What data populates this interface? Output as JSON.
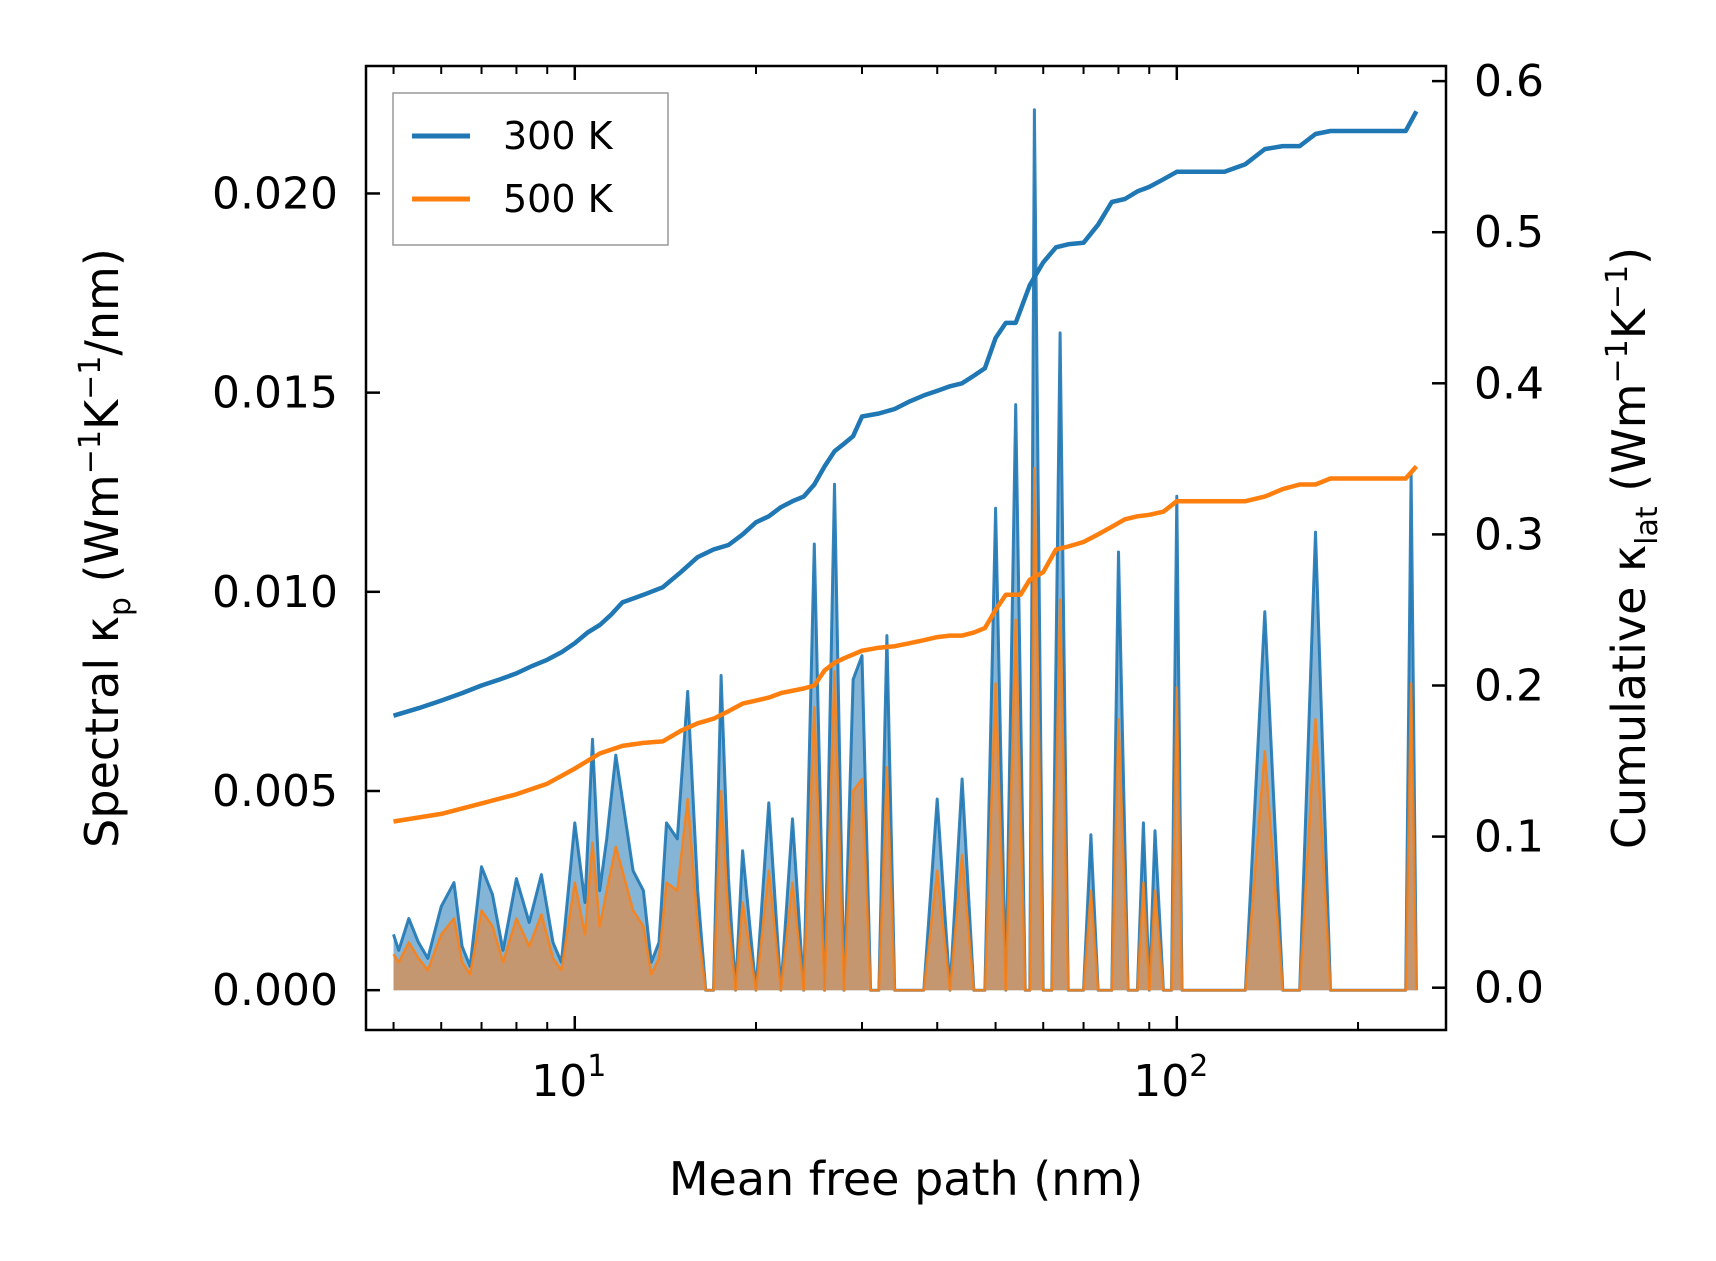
{
  "chart_data": {
    "type": "line",
    "title": "",
    "xlabel": "Mean free path (nm)",
    "xscale": "log",
    "xlim": [
      4.5,
      280
    ],
    "x_ticks": [
      {
        "value": 10,
        "base": "10",
        "exp": "1"
      },
      {
        "value": 100,
        "base": "10",
        "exp": "2"
      }
    ],
    "y_left": {
      "label": "Spectral κp (Wm⁻¹K⁻¹/nm)",
      "label_parts": {
        "main": "Spectral κ",
        "sub": "p",
        "units_open": " (Wm",
        "exp1": "−1",
        "mid": "K",
        "exp2": "−1",
        "units_close": "/nm)"
      },
      "ylim": [
        -0.001,
        0.0232
      ],
      "ticks": [
        0.0,
        0.005,
        0.01,
        0.015,
        0.02
      ],
      "tick_labels": [
        "0.000",
        "0.005",
        "0.010",
        "0.015",
        "0.020"
      ]
    },
    "y_right": {
      "label": "Cumulative κlat (Wm⁻¹K⁻¹)",
      "label_parts": {
        "main": "Cumulative κ",
        "sub": "lat",
        "units_open": " (Wm",
        "exp1": "−1",
        "mid": "K",
        "exp2": "−1",
        "units_close": ")"
      },
      "ylim": [
        -0.028,
        0.61
      ],
      "ticks": [
        0.0,
        0.1,
        0.2,
        0.3,
        0.4,
        0.5,
        0.6
      ],
      "tick_labels": [
        "0.0",
        "0.1",
        "0.2",
        "0.3",
        "0.4",
        "0.5",
        "0.6"
      ]
    },
    "legend": {
      "position": "top-left",
      "entries": [
        "300 K",
        "500 K"
      ]
    },
    "colors": {
      "300 K": "#1f77b4",
      "500 K": "#ff7f0e",
      "spectral_500_fill": "#c8966a"
    },
    "series": [
      {
        "name": "300 K",
        "kind": "cumulative",
        "axis": "right",
        "x": [
          5,
          5.5,
          6,
          6.5,
          7,
          7.5,
          8,
          8.5,
          9,
          9.5,
          10,
          10.5,
          11,
          11.5,
          12,
          13,
          14,
          15,
          16,
          17,
          18,
          19,
          20,
          21,
          22,
          23,
          24,
          25,
          26,
          27,
          28,
          29,
          30,
          32,
          34,
          36,
          38,
          40,
          42,
          44,
          46,
          48,
          50,
          52,
          54,
          57,
          60,
          63,
          66,
          70,
          74,
          78,
          82,
          86,
          90,
          95,
          100,
          110,
          120,
          130,
          140,
          150,
          160,
          170,
          180,
          200,
          220,
          240,
          250
        ],
        "y": [
          0.18,
          0.185,
          0.19,
          0.195,
          0.2,
          0.204,
          0.208,
          0.213,
          0.217,
          0.222,
          0.228,
          0.235,
          0.24,
          0.247,
          0.255,
          0.26,
          0.265,
          0.275,
          0.285,
          0.29,
          0.293,
          0.3,
          0.308,
          0.312,
          0.318,
          0.322,
          0.325,
          0.333,
          0.345,
          0.355,
          0.36,
          0.365,
          0.378,
          0.38,
          0.383,
          0.388,
          0.392,
          0.395,
          0.398,
          0.4,
          0.405,
          0.41,
          0.43,
          0.44,
          0.44,
          0.465,
          0.48,
          0.49,
          0.492,
          0.493,
          0.505,
          0.52,
          0.522,
          0.527,
          0.53,
          0.535,
          0.54,
          0.54,
          0.54,
          0.545,
          0.555,
          0.557,
          0.557,
          0.565,
          0.567,
          0.567,
          0.567,
          0.567,
          0.58
        ]
      },
      {
        "name": "500 K",
        "kind": "cumulative",
        "axis": "right",
        "x": [
          5,
          6,
          7,
          8,
          9,
          10,
          11,
          12,
          13,
          14,
          15,
          16,
          17,
          18,
          19,
          20,
          21,
          22,
          24,
          25,
          26,
          27,
          28,
          30,
          32,
          34,
          36,
          38,
          40,
          42,
          44,
          46,
          48,
          50,
          52,
          55,
          57,
          60,
          63,
          66,
          70,
          74,
          78,
          82,
          86,
          90,
          95,
          100,
          110,
          120,
          130,
          140,
          150,
          160,
          170,
          180,
          200,
          220,
          240,
          250
        ],
        "y": [
          0.11,
          0.115,
          0.122,
          0.128,
          0.135,
          0.145,
          0.155,
          0.16,
          0.162,
          0.163,
          0.17,
          0.175,
          0.178,
          0.183,
          0.188,
          0.19,
          0.192,
          0.195,
          0.198,
          0.2,
          0.21,
          0.215,
          0.218,
          0.223,
          0.225,
          0.226,
          0.228,
          0.23,
          0.232,
          0.233,
          0.233,
          0.235,
          0.238,
          0.25,
          0.26,
          0.26,
          0.27,
          0.275,
          0.29,
          0.292,
          0.295,
          0.3,
          0.305,
          0.31,
          0.312,
          0.313,
          0.315,
          0.322,
          0.322,
          0.322,
          0.322,
          0.325,
          0.33,
          0.333,
          0.333,
          0.337,
          0.337,
          0.337,
          0.337,
          0.345
        ]
      },
      {
        "name": "300 K",
        "kind": "spectral",
        "axis": "left",
        "x": [
          5,
          5.1,
          5.3,
          5.5,
          5.7,
          6,
          6.3,
          6.5,
          6.7,
          7,
          7.3,
          7.6,
          8,
          8.4,
          8.8,
          9.2,
          9.5,
          10,
          10.4,
          10.7,
          11,
          11.3,
          11.7,
          12,
          12.5,
          13,
          13.4,
          13.8,
          14.2,
          14.8,
          15.4,
          16,
          16.5,
          17,
          17.5,
          18,
          18.5,
          19,
          20,
          21,
          22,
          23,
          24,
          25,
          26,
          27,
          28,
          29,
          30,
          31,
          32,
          33,
          34,
          35,
          36,
          38,
          40,
          42,
          44,
          46,
          48,
          50,
          52,
          54,
          56,
          57,
          58,
          60,
          62,
          64,
          66,
          68,
          70,
          72,
          74,
          76,
          78,
          80,
          83,
          86,
          88,
          90,
          92,
          95,
          98,
          100,
          102,
          110,
          120,
          130,
          140,
          150,
          160,
          170,
          180,
          200,
          220,
          240,
          245,
          250
        ],
        "y": [
          0.0014,
          0.001,
          0.0018,
          0.0012,
          0.0008,
          0.0021,
          0.0027,
          0.0011,
          0.0006,
          0.0031,
          0.0024,
          0.001,
          0.0028,
          0.0017,
          0.0029,
          0.0012,
          0.0007,
          0.0042,
          0.0022,
          0.0063,
          0.0025,
          0.0038,
          0.0059,
          0.0048,
          0.003,
          0.0025,
          0.0007,
          0.0012,
          0.0042,
          0.0038,
          0.0075,
          0.0025,
          0.0,
          0.0,
          0.0079,
          0.0028,
          0.0,
          0.0035,
          0.0,
          0.0047,
          0.0,
          0.0043,
          0.0,
          0.0112,
          0.0,
          0.0127,
          0.0,
          0.0078,
          0.0084,
          0.0,
          0.0,
          0.0089,
          0.0,
          0.0,
          0.0,
          0.0,
          0.0048,
          0.0,
          0.0053,
          0.0,
          0.0,
          0.0121,
          0.0,
          0.0147,
          0.0,
          0.0,
          0.0221,
          0.0,
          0.0,
          0.0165,
          0.0,
          0.0,
          0.0,
          0.0039,
          0.0,
          0.0,
          0.0,
          0.011,
          0.0,
          0.0,
          0.0042,
          0.0,
          0.004,
          0.0,
          0.0,
          0.0124,
          0.0,
          0.0,
          0.0,
          0.0,
          0.0095,
          0.0,
          0.0,
          0.0115,
          0.0,
          0.0,
          0.0,
          0.0,
          0.013,
          0.0
        ]
      },
      {
        "name": "500 K",
        "kind": "spectral",
        "axis": "left",
        "x": [
          5,
          5.1,
          5.3,
          5.5,
          5.7,
          6,
          6.3,
          6.5,
          6.7,
          7,
          7.3,
          7.6,
          8,
          8.4,
          8.8,
          9.2,
          9.5,
          10,
          10.4,
          10.7,
          11,
          11.3,
          11.7,
          12,
          12.5,
          13,
          13.4,
          13.8,
          14.2,
          14.8,
          15.4,
          16,
          16.5,
          17,
          17.5,
          18,
          18.5,
          19,
          20,
          21,
          22,
          23,
          24,
          25,
          26,
          27,
          28,
          29,
          30,
          31,
          32,
          33,
          34,
          35,
          36,
          38,
          40,
          42,
          44,
          46,
          48,
          50,
          52,
          54,
          56,
          57,
          58,
          60,
          62,
          64,
          66,
          68,
          70,
          72,
          74,
          76,
          78,
          80,
          83,
          86,
          88,
          90,
          92,
          95,
          98,
          100,
          102,
          110,
          120,
          130,
          140,
          150,
          160,
          170,
          180,
          200,
          220,
          240,
          245,
          250
        ],
        "y": [
          0.0009,
          0.0007,
          0.0012,
          0.0008,
          0.0005,
          0.0014,
          0.0018,
          0.0007,
          0.0004,
          0.002,
          0.0016,
          0.0007,
          0.0018,
          0.0011,
          0.0019,
          0.0008,
          0.0005,
          0.0027,
          0.0014,
          0.0037,
          0.0016,
          0.0025,
          0.0036,
          0.003,
          0.002,
          0.0016,
          0.0004,
          0.0008,
          0.0027,
          0.0025,
          0.0048,
          0.0016,
          0.0,
          0.0,
          0.005,
          0.0018,
          0.0,
          0.0022,
          0.0,
          0.003,
          0.0,
          0.0027,
          0.0,
          0.0071,
          0.0,
          0.008,
          0.0,
          0.005,
          0.0053,
          0.0,
          0.0,
          0.0056,
          0.0,
          0.0,
          0.0,
          0.0,
          0.003,
          0.0,
          0.0034,
          0.0,
          0.0,
          0.0077,
          0.0,
          0.0093,
          0.0,
          0.0,
          0.0131,
          0.0,
          0.0,
          0.0098,
          0.0,
          0.0,
          0.0,
          0.0025,
          0.0,
          0.0,
          0.0,
          0.0068,
          0.0,
          0.0,
          0.0027,
          0.0,
          0.0025,
          0.0,
          0.0,
          0.0076,
          0.0,
          0.0,
          0.0,
          0.0,
          0.006,
          0.0,
          0.0,
          0.0068,
          0.0,
          0.0,
          0.0,
          0.0,
          0.0077,
          0.0
        ]
      }
    ]
  }
}
